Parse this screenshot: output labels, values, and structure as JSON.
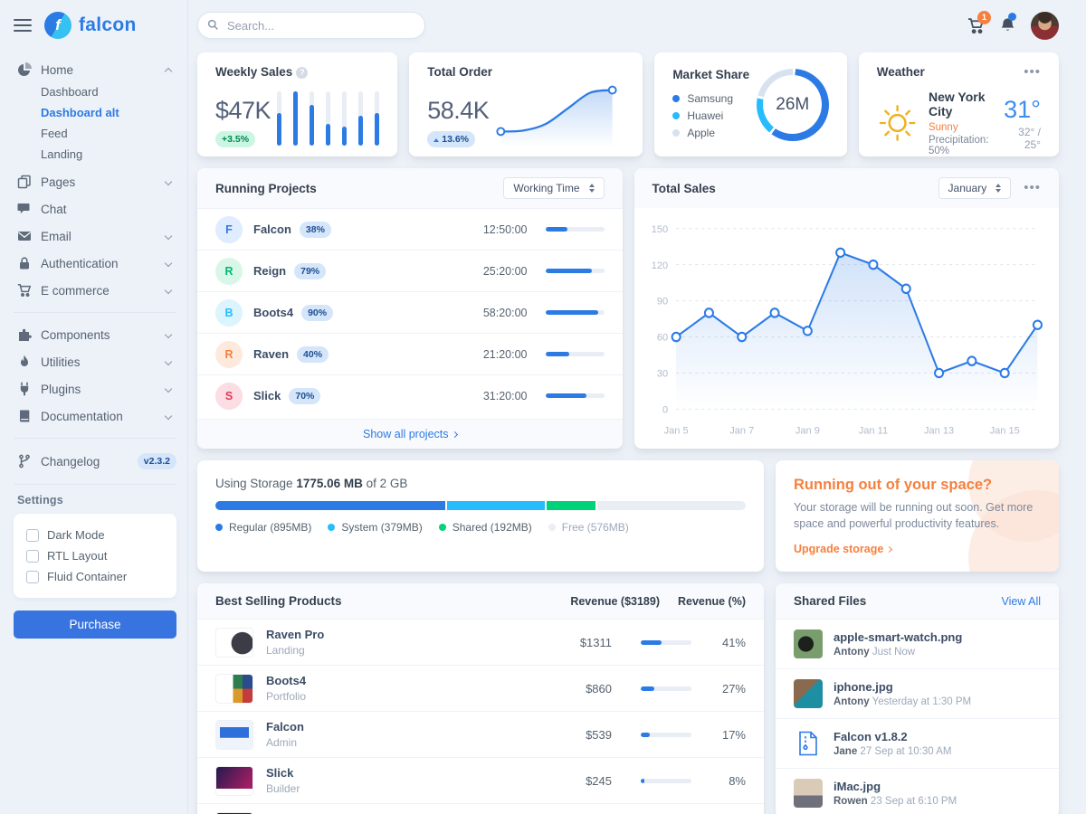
{
  "colors": {
    "primary": "#2c7be5",
    "info": "#27bcfd",
    "success": "#00d27a",
    "warning": "#f5803e",
    "danger": "#e63757",
    "background": "#edf2f9"
  },
  "brand": {
    "name": "falcon"
  },
  "topbar": {
    "search_placeholder": "Search...",
    "cart_badge": "1"
  },
  "sidebar": {
    "nav": [
      {
        "label": "Home",
        "children": [
          "Dashboard",
          "Dashboard alt",
          "Feed",
          "Landing"
        ]
      },
      {
        "label": "Pages"
      },
      {
        "label": "Chat"
      },
      {
        "label": "Email"
      },
      {
        "label": "Authentication"
      },
      {
        "label": "E commerce"
      },
      {
        "label": "Components"
      },
      {
        "label": "Utilities"
      },
      {
        "label": "Plugins"
      },
      {
        "label": "Documentation"
      }
    ],
    "changelog": {
      "label": "Changelog",
      "badge": "v2.3.2"
    },
    "settings": {
      "heading": "Settings",
      "options": [
        "Dark Mode",
        "RTL Layout",
        "Fluid Container"
      ],
      "purchase_label": "Purchase"
    }
  },
  "cards": {
    "weekly_sales": {
      "title": "Weekly Sales",
      "value": "$47K",
      "badge": "+3.5%"
    },
    "total_order": {
      "title": "Total Order",
      "value": "58.4K",
      "badge": "13.6%"
    },
    "market_share": {
      "title": "Market Share"
    },
    "weather": {
      "title": "Weather",
      "city": "New York City",
      "condition": "Sunny",
      "precipitation": "Precipitation: 50%",
      "temp": "31°",
      "range": "32° / 25°"
    }
  },
  "running_projects": {
    "title": "Running Projects",
    "select": "Working Time",
    "footer_link": "Show all projects",
    "rows": [
      {
        "initial": "F",
        "name": "Falcon",
        "badge": "38%",
        "time": "12:50:00",
        "progress": 38,
        "bg": "#e0ecff",
        "fg": "#2c7be5"
      },
      {
        "initial": "R",
        "name": "Reign",
        "badge": "79%",
        "time": "25:20:00",
        "progress": 79,
        "bg": "#d9f7e9",
        "fg": "#00b96b"
      },
      {
        "initial": "B",
        "name": "Boots4",
        "badge": "90%",
        "time": "58:20:00",
        "progress": 90,
        "bg": "#dcf4fe",
        "fg": "#27bcfd"
      },
      {
        "initial": "R",
        "name": "Raven",
        "badge": "40%",
        "time": "21:20:00",
        "progress": 40,
        "bg": "#fdeadd",
        "fg": "#f5803e"
      },
      {
        "initial": "S",
        "name": "Slick",
        "badge": "70%",
        "time": "31:20:00",
        "progress": 70,
        "bg": "#fbdde3",
        "fg": "#e63757"
      }
    ]
  },
  "total_sales": {
    "title": "Total Sales",
    "select": "January"
  },
  "storage": {
    "label_prefix": "Using Storage",
    "used": "1775.06 MB",
    "label_suffix": "of 2 GB",
    "total_mb": 2048,
    "segments": [
      {
        "label": "Regular (895MB)",
        "mb": 895,
        "color": "#2c7be5"
      },
      {
        "label": "System (379MB)",
        "mb": 379,
        "color": "#27bcfd"
      },
      {
        "label": "Shared (192MB)",
        "mb": 192,
        "color": "#00d27a"
      },
      {
        "label": "Free (576MB)",
        "mb": 576,
        "color": "#e9eef5"
      }
    ]
  },
  "space_ad": {
    "title": "Running out of your space?",
    "body": "Your storage will be running out soon. Get more space and powerful productivity features.",
    "link_label": "Upgrade storage"
  },
  "best_selling": {
    "title": "Best Selling Products",
    "revenue_header": "Revenue ($3189)",
    "percent_header": "Revenue (%)",
    "products": [
      {
        "name": "Raven Pro",
        "category": "Landing",
        "revenue": "$1311",
        "percent_label": "41%",
        "percent": 41
      },
      {
        "name": "Boots4",
        "category": "Portfolio",
        "revenue": "$860",
        "percent_label": "27%",
        "percent": 27
      },
      {
        "name": "Falcon",
        "category": "Admin",
        "revenue": "$539",
        "percent_label": "17%",
        "percent": 17
      },
      {
        "name": "Slick",
        "category": "Builder",
        "revenue": "$245",
        "percent_label": "8%",
        "percent": 8
      }
    ]
  },
  "shared_files": {
    "title": "Shared Files",
    "view_all": "View All",
    "files": [
      {
        "name": "apple-smart-watch.png",
        "user": "Antony",
        "time": "Just Now"
      },
      {
        "name": "iphone.jpg",
        "user": "Antony",
        "time": "Yesterday at 1:30 PM"
      },
      {
        "name": "Falcon v1.8.2",
        "user": "Jane",
        "time": "27 Sep at 10:30 AM"
      },
      {
        "name": "iMac.jpg",
        "user": "Rowen",
        "time": "23 Sep at 6:10 PM"
      }
    ]
  },
  "chart_data": [
    {
      "id": "weekly-sales",
      "type": "bar",
      "title": "Weekly Sales",
      "values": [
        120,
        200,
        150,
        80,
        70,
        110,
        120
      ],
      "ylim": [
        0,
        200
      ],
      "color": "#2c7be5"
    },
    {
      "id": "total-order",
      "type": "line",
      "title": "Total Order",
      "values": [
        20,
        21,
        28,
        45,
        62,
        65
      ],
      "markers": "ends",
      "color": "#2c7be5"
    },
    {
      "id": "market-share",
      "type": "pie",
      "title": "Market Share",
      "labels": [
        "Samsung",
        "Huawei",
        "Apple"
      ],
      "values": [
        60,
        18,
        22
      ],
      "colors": [
        "#2c7be5",
        "#27bcfd",
        "#d8e2ef"
      ],
      "center_label": "26M"
    },
    {
      "id": "total-sales",
      "type": "line",
      "title": "Total Sales",
      "x": [
        "Jan 5",
        "Jan 6",
        "Jan 7",
        "Jan 8",
        "Jan 9",
        "Jan 10",
        "Jan 11",
        "Jan 12",
        "Jan 13",
        "Jan 14",
        "Jan 15",
        "Jan 16"
      ],
      "values": [
        60,
        80,
        60,
        80,
        65,
        130,
        120,
        100,
        30,
        40,
        30,
        70
      ],
      "ylim": [
        0,
        150
      ],
      "yticks": [
        0,
        30,
        60,
        90,
        120,
        150
      ],
      "xtick_labels": [
        "Jan 5",
        "Jan 7",
        "Jan 9",
        "Jan 11",
        "Jan 13",
        "Jan 15"
      ],
      "grid": "dashed",
      "legend": "none",
      "color": "#2c7be5"
    }
  ]
}
